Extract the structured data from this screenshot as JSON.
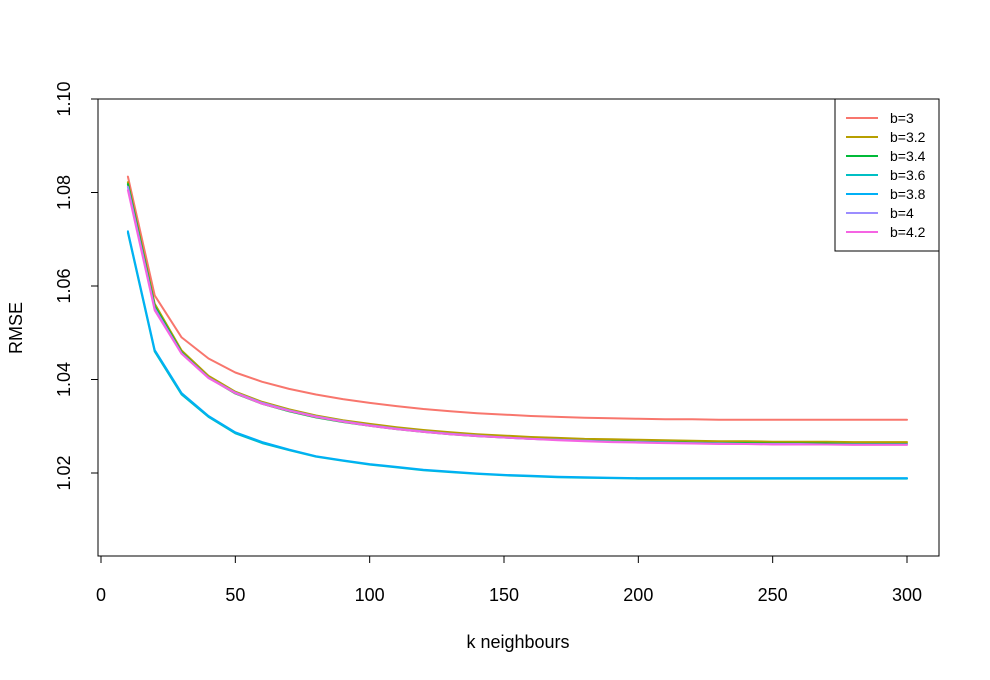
{
  "chart_data": {
    "type": "line",
    "title": "",
    "xlabel": "k neighbours",
    "ylabel": "RMSE",
    "xlim": [
      0,
      300
    ],
    "ylim": [
      1.0,
      1.1
    ],
    "x_ticks": [
      0,
      50,
      100,
      150,
      200,
      250,
      300
    ],
    "y_ticks": [
      1.02,
      1.04,
      1.06,
      1.08,
      1.1
    ],
    "y_tick_labels": [
      "1.02",
      "1.04",
      "1.06",
      "1.08",
      "1.10"
    ],
    "grid": false,
    "legend_position": "top-right",
    "x": [
      10,
      20,
      30,
      40,
      50,
      60,
      70,
      80,
      90,
      100,
      110,
      120,
      130,
      140,
      150,
      160,
      170,
      180,
      190,
      200,
      210,
      220,
      230,
      240,
      250,
      260,
      270,
      280,
      290,
      300
    ],
    "series": [
      {
        "name": "b=3",
        "color": "#F8766D",
        "values": [
          1.0834,
          1.058,
          1.049,
          1.0445,
          1.0415,
          1.0395,
          1.038,
          1.0368,
          1.0358,
          1.035,
          1.0343,
          1.0337,
          1.0332,
          1.0328,
          1.0325,
          1.0322,
          1.032,
          1.0318,
          1.0317,
          1.0316,
          1.0315,
          1.0315,
          1.0314,
          1.0314,
          1.0314,
          1.0314,
          1.0314,
          1.0314,
          1.0314,
          1.0314
        ]
      },
      {
        "name": "b=3.2",
        "color": "#B79F00",
        "values": [
          1.0822,
          1.0562,
          1.0462,
          1.0408,
          1.0374,
          1.0352,
          1.0336,
          1.0323,
          1.0313,
          1.0305,
          1.0298,
          1.0292,
          1.0287,
          1.0283,
          1.028,
          1.0277,
          1.0275,
          1.0273,
          1.0272,
          1.0271,
          1.027,
          1.0269,
          1.0268,
          1.0268,
          1.0267,
          1.0267,
          1.0267,
          1.0266,
          1.0266,
          1.0266
        ]
      },
      {
        "name": "b=3.4",
        "color": "#00BA38",
        "values": [
          1.0818,
          1.0557,
          1.0458,
          1.0404,
          1.037,
          1.0348,
          1.0332,
          1.0319,
          1.0309,
          1.0301,
          1.0294,
          1.0288,
          1.0283,
          1.0279,
          1.0276,
          1.0273,
          1.0271,
          1.0269,
          1.0268,
          1.0267,
          1.0266,
          1.0265,
          1.0264,
          1.0264,
          1.0263,
          1.0263,
          1.0263,
          1.0262,
          1.0262,
          1.0262
        ]
      },
      {
        "name": "b=3.6",
        "color": "#00BFC4",
        "values": [
          1.0714,
          1.046,
          1.0368,
          1.032,
          1.0285,
          1.0264,
          1.0249,
          1.0235,
          1.0226,
          1.0218,
          1.0212,
          1.0206,
          1.0202,
          1.0198,
          1.0195,
          1.0193,
          1.0191,
          1.019,
          1.0189,
          1.0188,
          1.0188,
          1.0188,
          1.0188,
          1.0188,
          1.0188,
          1.0188,
          1.0188,
          1.0188,
          1.0188,
          1.0188
        ]
      },
      {
        "name": "b=3.8",
        "color": "#00B0F6",
        "values": [
          1.0717,
          1.0463,
          1.0371,
          1.0322,
          1.0287,
          1.0266,
          1.025,
          1.0236,
          1.0227,
          1.0219,
          1.0213,
          1.0207,
          1.0203,
          1.0199,
          1.0196,
          1.0194,
          1.0192,
          1.0191,
          1.019,
          1.0189,
          1.0189,
          1.0189,
          1.0189,
          1.0189,
          1.0189,
          1.0189,
          1.0189,
          1.0189,
          1.0189,
          1.0189
        ]
      },
      {
        "name": "b=4",
        "color": "#9C8DFF",
        "values": [
          1.0812,
          1.0552,
          1.0456,
          1.0404,
          1.0372,
          1.035,
          1.0334,
          1.0321,
          1.0311,
          1.0302,
          1.0295,
          1.0289,
          1.0284,
          1.028,
          1.0276,
          1.0273,
          1.0271,
          1.0269,
          1.0267,
          1.0266,
          1.0265,
          1.0264,
          1.0263,
          1.0262,
          1.0262,
          1.0262,
          1.0261,
          1.0261,
          1.0261,
          1.0261
        ]
      },
      {
        "name": "b=4.2",
        "color": "#F564E3",
        "values": [
          1.0805,
          1.0548,
          1.0455,
          1.0403,
          1.0371,
          1.0348,
          1.0333,
          1.032,
          1.031,
          1.0301,
          1.0294,
          1.0288,
          1.0283,
          1.0279,
          1.0276,
          1.0273,
          1.027,
          1.0268,
          1.0266,
          1.0265,
          1.0264,
          1.0263,
          1.0262,
          1.0262,
          1.0261,
          1.0261,
          1.0261,
          1.026,
          1.026,
          1.026
        ]
      }
    ]
  }
}
